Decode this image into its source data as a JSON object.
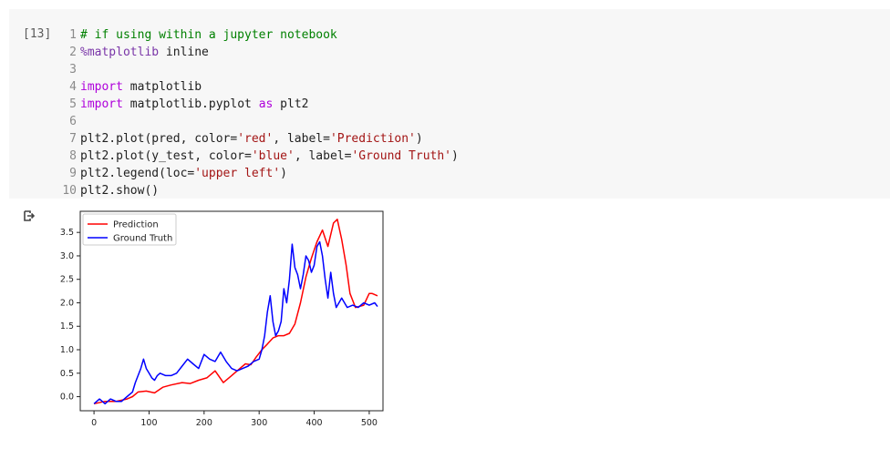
{
  "cell": {
    "exec_count": "[13]",
    "lines": [
      {
        "n": "1",
        "parts": [
          {
            "t": "# if using within a jupyter notebook",
            "c": "comment"
          }
        ]
      },
      {
        "n": "2",
        "parts": [
          {
            "t": "%matplotlib",
            "c": "magic"
          },
          {
            "t": " inline",
            "c": "punc"
          }
        ]
      },
      {
        "n": "3",
        "parts": []
      },
      {
        "n": "4",
        "parts": [
          {
            "t": "import",
            "c": "kw"
          },
          {
            "t": " matplotlib",
            "c": "punc"
          }
        ]
      },
      {
        "n": "5",
        "parts": [
          {
            "t": "import",
            "c": "kw"
          },
          {
            "t": " matplotlib.pyplot ",
            "c": "punc"
          },
          {
            "t": "as",
            "c": "kw"
          },
          {
            "t": " plt2",
            "c": "punc"
          }
        ]
      },
      {
        "n": "6",
        "parts": []
      },
      {
        "n": "7",
        "parts": [
          {
            "t": "plt2.plot(pred, color=",
            "c": "punc"
          },
          {
            "t": "'red'",
            "c": "str"
          },
          {
            "t": ", label=",
            "c": "punc"
          },
          {
            "t": "'Prediction'",
            "c": "str"
          },
          {
            "t": ")",
            "c": "punc"
          }
        ]
      },
      {
        "n": "8",
        "parts": [
          {
            "t": "plt2.plot(y_test, color=",
            "c": "punc"
          },
          {
            "t": "'blue'",
            "c": "str"
          },
          {
            "t": ", label=",
            "c": "punc"
          },
          {
            "t": "'Ground Truth'",
            "c": "str"
          },
          {
            "t": ")",
            "c": "punc"
          }
        ]
      },
      {
        "n": "9",
        "parts": [
          {
            "t": "plt2.legend(loc=",
            "c": "punc"
          },
          {
            "t": "'upper left'",
            "c": "str"
          },
          {
            "t": ")",
            "c": "punc"
          }
        ]
      },
      {
        "n": "10",
        "parts": [
          {
            "t": "plt2.show()",
            "c": "punc"
          }
        ]
      }
    ]
  },
  "output": {
    "icon": "output-arrow-icon"
  },
  "chart_data": {
    "type": "line",
    "title": "",
    "xlabel": "",
    "ylabel": "",
    "xlim": [
      -25,
      525
    ],
    "ylim": [
      -0.3,
      3.95
    ],
    "xticks": [
      0,
      100,
      200,
      300,
      400,
      500
    ],
    "yticks": [
      0.0,
      0.5,
      1.0,
      1.5,
      2.0,
      2.5,
      3.0,
      3.5
    ],
    "ytick_labels": [
      "0.0",
      "0.5",
      "1.0",
      "1.5",
      "2.0",
      "2.5",
      "3.0",
      "3.5"
    ],
    "legend": "upper left",
    "grid": false,
    "series": [
      {
        "name": "Prediction",
        "color": "#ff0000",
        "x": [
          0,
          20,
          40,
          60,
          70,
          80,
          95,
          110,
          125,
          140,
          160,
          175,
          190,
          205,
          220,
          235,
          250,
          265,
          275,
          285,
          295,
          305,
          315,
          325,
          335,
          345,
          355,
          365,
          375,
          385,
          395,
          405,
          415,
          425,
          435,
          442,
          450,
          458,
          465,
          475,
          490,
          500,
          505,
          515
        ],
        "y": [
          -0.15,
          -0.1,
          -0.1,
          -0.05,
          0.0,
          0.1,
          0.12,
          0.08,
          0.2,
          0.25,
          0.3,
          0.28,
          0.35,
          0.4,
          0.55,
          0.3,
          0.45,
          0.6,
          0.7,
          0.68,
          0.85,
          1.0,
          1.12,
          1.25,
          1.3,
          1.3,
          1.35,
          1.55,
          2.0,
          2.55,
          2.95,
          3.3,
          3.55,
          3.2,
          3.7,
          3.78,
          3.35,
          2.8,
          2.2,
          1.9,
          1.95,
          2.2,
          2.2,
          2.15
        ]
      },
      {
        "name": "Ground Truth",
        "color": "#0000ff",
        "x": [
          0,
          10,
          20,
          30,
          40,
          50,
          60,
          70,
          75,
          80,
          85,
          90,
          95,
          100,
          105,
          110,
          115,
          120,
          130,
          140,
          150,
          160,
          170,
          180,
          190,
          200,
          210,
          220,
          230,
          240,
          250,
          260,
          270,
          280,
          290,
          300,
          305,
          310,
          315,
          320,
          325,
          330,
          335,
          340,
          345,
          350,
          355,
          360,
          365,
          370,
          375,
          380,
          385,
          390,
          395,
          400,
          405,
          410,
          415,
          420,
          425,
          430,
          435,
          440,
          445,
          450,
          460,
          470,
          480,
          490,
          500,
          510,
          515
        ],
        "y": [
          -0.15,
          -0.05,
          -0.15,
          -0.05,
          -0.1,
          -0.1,
          0.0,
          0.1,
          0.3,
          0.45,
          0.6,
          0.8,
          0.6,
          0.5,
          0.4,
          0.35,
          0.45,
          0.5,
          0.45,
          0.45,
          0.5,
          0.65,
          0.8,
          0.7,
          0.6,
          0.9,
          0.8,
          0.75,
          0.95,
          0.75,
          0.6,
          0.55,
          0.6,
          0.65,
          0.75,
          0.8,
          1.0,
          1.3,
          1.8,
          2.15,
          1.6,
          1.3,
          1.4,
          1.6,
          2.3,
          2.0,
          2.5,
          3.25,
          2.75,
          2.6,
          2.3,
          2.6,
          3.0,
          2.9,
          2.65,
          2.8,
          3.2,
          3.3,
          3.0,
          2.5,
          2.1,
          2.65,
          2.2,
          1.9,
          2.0,
          2.1,
          1.9,
          1.95,
          1.9,
          2.0,
          1.95,
          2.0,
          1.92
        ]
      }
    ]
  }
}
